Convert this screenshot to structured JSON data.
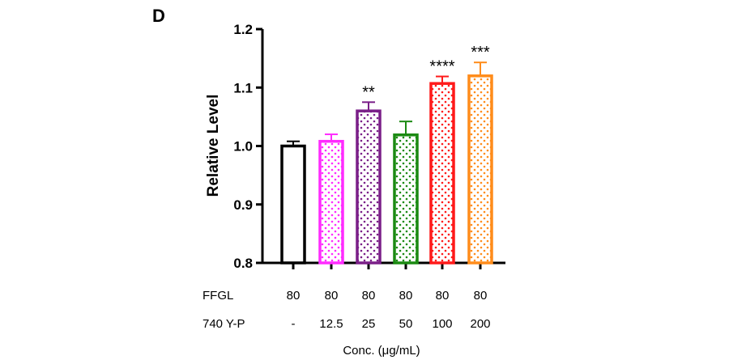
{
  "panel_label": "D",
  "chart_data": {
    "type": "bar",
    "ylabel": "Relative Level",
    "xlabel": "Conc. (μg/mL)",
    "ylim": [
      0.8,
      1.2
    ],
    "yticks": [
      "0.8",
      "0.9",
      "1.0",
      "1.1",
      "1.2"
    ],
    "grid": false,
    "table_rows": [
      {
        "label": "FFGL",
        "values": [
          "80",
          "80",
          "80",
          "80",
          "80",
          "80"
        ]
      },
      {
        "label": "740 Y-P",
        "values": [
          "-",
          "12.5",
          "25",
          "50",
          "100",
          "200"
        ]
      }
    ],
    "bars": [
      {
        "value": 1.0,
        "error": 0.008,
        "color": "#000000",
        "significance": ""
      },
      {
        "value": 1.008,
        "error": 0.012,
        "color": "#ff2bff",
        "significance": ""
      },
      {
        "value": 1.06,
        "error": 0.015,
        "color": "#7a1f88",
        "significance": "**"
      },
      {
        "value": 1.019,
        "error": 0.023,
        "color": "#1b8a12",
        "significance": ""
      },
      {
        "value": 1.107,
        "error": 0.012,
        "color": "#ff1a1a",
        "significance": "****"
      },
      {
        "value": 1.12,
        "error": 0.023,
        "color": "#ff8c1a",
        "significance": "***"
      }
    ]
  }
}
